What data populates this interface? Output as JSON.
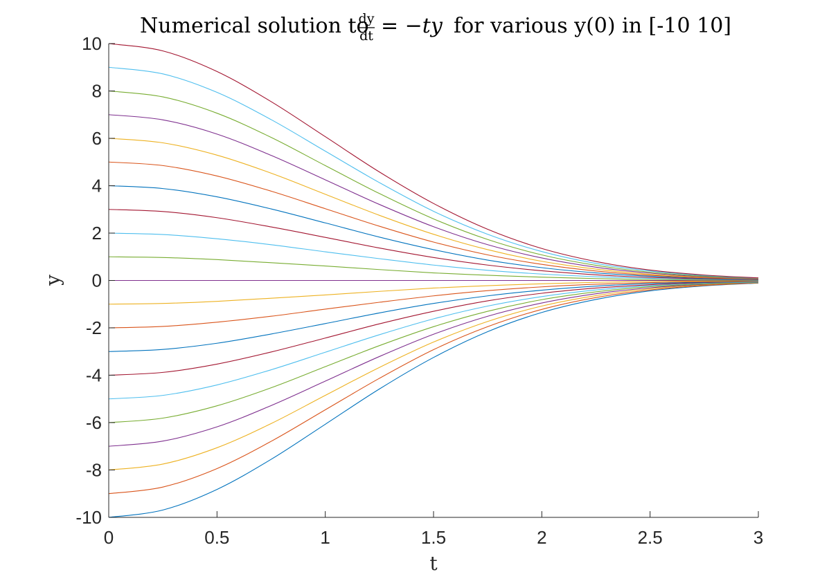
{
  "chart_data": {
    "type": "line",
    "title": {
      "prefix": "Numerical solution to ",
      "frac_numerator": "dy",
      "frac_denominator": "dt",
      "equation": "= −ty",
      "suffix": " for various y(0) in [-10 10]"
    },
    "xlabel": "t",
    "ylabel": "y",
    "xlim": [
      0,
      3
    ],
    "ylim": [
      -10,
      10
    ],
    "x_ticks": [
      0,
      0.5,
      1,
      1.5,
      2,
      2.5,
      3
    ],
    "x_tick_labels": [
      "0",
      "0.5",
      "1",
      "1.5",
      "2",
      "2.5",
      "3"
    ],
    "y_ticks": [
      -10,
      -8,
      -6,
      -4,
      -2,
      0,
      2,
      4,
      6,
      8,
      10
    ],
    "y_tick_labels": [
      "-10",
      "-8",
      "-6",
      "-4",
      "-2",
      "0",
      "2",
      "4",
      "6",
      "8",
      "10"
    ],
    "grid": false,
    "series_function": "y(t) = y0 * exp(-t^2/2)",
    "x": [
      0,
      0.25,
      0.5,
      0.75,
      1,
      1.25,
      1.5,
      1.75,
      2,
      2.25,
      2.5,
      2.75,
      3
    ],
    "series": [
      {
        "y0": -10,
        "color": "#0072BD",
        "values": [
          -10,
          -9.69,
          -8.82,
          -7.55,
          -6.07,
          -4.58,
          -3.25,
          -2.16,
          -1.35,
          -0.8,
          -0.44,
          -0.23,
          -0.11
        ]
      },
      {
        "y0": -9,
        "color": "#D95319",
        "values": [
          -9,
          -8.72,
          -7.94,
          -6.79,
          -5.46,
          -4.13,
          -2.92,
          -1.95,
          -1.22,
          -0.72,
          -0.4,
          -0.21,
          -0.1
        ]
      },
      {
        "y0": -8,
        "color": "#EDB120",
        "values": [
          -8,
          -7.75,
          -7.06,
          -6.04,
          -4.85,
          -3.67,
          -2.6,
          -1.73,
          -1.08,
          -0.64,
          -0.35,
          -0.18,
          -0.09
        ]
      },
      {
        "y0": -7,
        "color": "#7E2F8E",
        "values": [
          -7,
          -6.78,
          -6.18,
          -5.28,
          -4.25,
          -3.21,
          -2.27,
          -1.51,
          -0.95,
          -0.56,
          -0.31,
          -0.16,
          -0.08
        ]
      },
      {
        "y0": -6,
        "color": "#77AC30",
        "values": [
          -6,
          -5.81,
          -5.29,
          -4.53,
          -3.64,
          -2.75,
          -1.95,
          -1.3,
          -0.81,
          -0.48,
          -0.26,
          -0.14,
          -0.07
        ]
      },
      {
        "y0": -5,
        "color": "#4DBEEE",
        "values": [
          -5,
          -4.85,
          -4.41,
          -3.77,
          -3.03,
          -2.29,
          -1.62,
          -1.08,
          -0.68,
          -0.4,
          -0.22,
          -0.11,
          -0.06
        ]
      },
      {
        "y0": -4,
        "color": "#A2142F",
        "values": [
          -4,
          -3.88,
          -3.53,
          -3.02,
          -2.43,
          -1.83,
          -1.3,
          -0.86,
          -0.54,
          -0.32,
          -0.18,
          -0.09,
          -0.04
        ]
      },
      {
        "y0": -3,
        "color": "#0072BD",
        "values": [
          -3,
          -2.91,
          -2.65,
          -2.26,
          -1.82,
          -1.37,
          -0.97,
          -0.65,
          -0.41,
          -0.24,
          -0.13,
          -0.07,
          -0.03
        ]
      },
      {
        "y0": -2,
        "color": "#D95319",
        "values": [
          -2,
          -1.94,
          -1.76,
          -1.51,
          -1.21,
          -0.92,
          -0.65,
          -0.43,
          -0.27,
          -0.16,
          -0.09,
          -0.05,
          -0.02
        ]
      },
      {
        "y0": -1,
        "color": "#EDB120",
        "values": [
          -1,
          -0.97,
          -0.88,
          -0.75,
          -0.61,
          -0.46,
          -0.32,
          -0.22,
          -0.14,
          -0.08,
          -0.04,
          -0.02,
          -0.01
        ]
      },
      {
        "y0": 0,
        "color": "#7E2F8E",
        "values": [
          0,
          0,
          0,
          0,
          0,
          0,
          0,
          0,
          0,
          0,
          0,
          0,
          0
        ]
      },
      {
        "y0": 1,
        "color": "#77AC30",
        "values": [
          1,
          0.97,
          0.88,
          0.75,
          0.61,
          0.46,
          0.32,
          0.22,
          0.14,
          0.08,
          0.04,
          0.02,
          0.01
        ]
      },
      {
        "y0": 2,
        "color": "#4DBEEE",
        "values": [
          2,
          1.94,
          1.76,
          1.51,
          1.21,
          0.92,
          0.65,
          0.43,
          0.27,
          0.16,
          0.09,
          0.05,
          0.02
        ]
      },
      {
        "y0": 3,
        "color": "#A2142F",
        "values": [
          3,
          2.91,
          2.65,
          2.26,
          1.82,
          1.37,
          0.97,
          0.65,
          0.41,
          0.24,
          0.13,
          0.07,
          0.03
        ]
      },
      {
        "y0": 4,
        "color": "#0072BD",
        "values": [
          4,
          3.88,
          3.53,
          3.02,
          2.43,
          1.83,
          1.3,
          0.86,
          0.54,
          0.32,
          0.18,
          0.09,
          0.04
        ]
      },
      {
        "y0": 5,
        "color": "#D95319",
        "values": [
          5,
          4.85,
          4.41,
          3.77,
          3.03,
          2.29,
          1.62,
          1.08,
          0.68,
          0.4,
          0.22,
          0.11,
          0.06
        ]
      },
      {
        "y0": 6,
        "color": "#EDB120",
        "values": [
          6,
          5.81,
          5.29,
          4.53,
          3.64,
          2.75,
          1.95,
          1.3,
          0.81,
          0.48,
          0.26,
          0.14,
          0.07
        ]
      },
      {
        "y0": 7,
        "color": "#7E2F8E",
        "values": [
          7,
          6.78,
          6.18,
          5.28,
          4.25,
          3.21,
          2.27,
          1.51,
          0.95,
          0.56,
          0.31,
          0.16,
          0.08
        ]
      },
      {
        "y0": 8,
        "color": "#77AC30",
        "values": [
          8,
          7.75,
          7.06,
          6.04,
          4.85,
          3.67,
          2.6,
          1.73,
          1.08,
          0.64,
          0.35,
          0.18,
          0.09
        ]
      },
      {
        "y0": 9,
        "color": "#4DBEEE",
        "values": [
          9,
          8.72,
          7.94,
          6.79,
          5.46,
          4.13,
          2.92,
          1.95,
          1.22,
          0.72,
          0.4,
          0.21,
          0.1
        ]
      },
      {
        "y0": 10,
        "color": "#A2142F",
        "values": [
          10,
          9.69,
          8.82,
          7.55,
          6.07,
          4.58,
          3.25,
          2.16,
          1.35,
          0.8,
          0.44,
          0.23,
          0.11
        ]
      }
    ]
  }
}
